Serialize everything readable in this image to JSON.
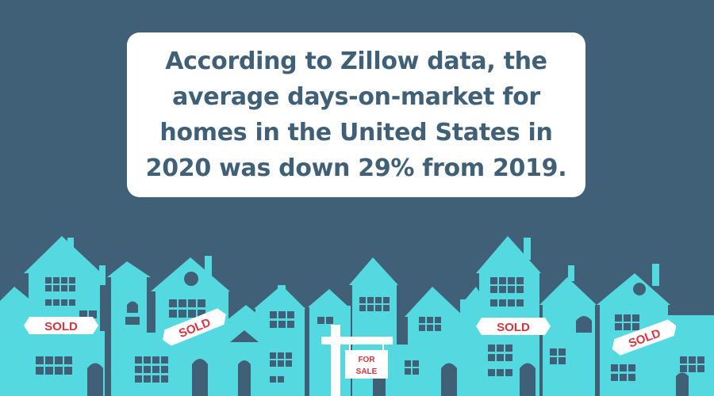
{
  "callout": {
    "text": "According to Zillow data, the average days-on-market for homes in the United States in 2020 was down 29% from 2019."
  },
  "signs": {
    "sold_1": "SOLD",
    "sold_2": "SOLD",
    "sold_3": "SOLD",
    "sold_4": "SOLD",
    "for_sale_line1": "FOR",
    "for_sale_line2": "SALE"
  },
  "colors": {
    "background": "#3f6077",
    "houses": "#55d9e0",
    "house_details": "#3f6077",
    "sold_text": "#d8353f",
    "callout_bg": "#ffffff"
  }
}
